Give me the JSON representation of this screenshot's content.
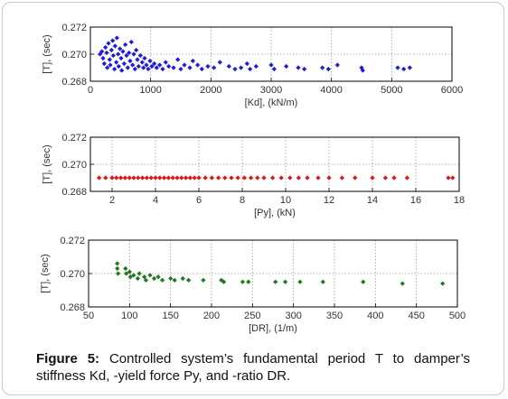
{
  "chart_data": [
    {
      "type": "scatter",
      "xlabel": "[Kd], (kN/m)",
      "ylabel": "[T], (sec)",
      "xlim": [
        0,
        6000
      ],
      "ylim": [
        0.268,
        0.272
      ],
      "xticks": [
        "0",
        "1000",
        "2000",
        "3000",
        "4000",
        "5000",
        "6000"
      ],
      "yticks": [
        "0.268",
        "0.270",
        "0.272"
      ],
      "grid": true,
      "color": "#1d1de0",
      "points": [
        [
          160,
          0.27
        ],
        [
          190,
          0.2702
        ],
        [
          210,
          0.2697
        ],
        [
          230,
          0.2693
        ],
        [
          250,
          0.2705
        ],
        [
          270,
          0.2701
        ],
        [
          280,
          0.269
        ],
        [
          300,
          0.2708
        ],
        [
          320,
          0.2696
        ],
        [
          330,
          0.2692
        ],
        [
          350,
          0.2703
        ],
        [
          370,
          0.271
        ],
        [
          380,
          0.2699
        ],
        [
          400,
          0.2689
        ],
        [
          410,
          0.2706
        ],
        [
          430,
          0.2694
        ],
        [
          440,
          0.2712
        ],
        [
          460,
          0.27
        ],
        [
          470,
          0.2691
        ],
        [
          490,
          0.2704
        ],
        [
          510,
          0.2697
        ],
        [
          520,
          0.2688
        ],
        [
          540,
          0.2702
        ],
        [
          560,
          0.2693
        ],
        [
          580,
          0.2707
        ],
        [
          600,
          0.2699
        ],
        [
          620,
          0.269
        ],
        [
          640,
          0.2701
        ],
        [
          660,
          0.2695
        ],
        [
          680,
          0.2709
        ],
        [
          700,
          0.2692
        ],
        [
          720,
          0.27
        ],
        [
          740,
          0.2689
        ],
        [
          760,
          0.2703
        ],
        [
          780,
          0.2696
        ],
        [
          800,
          0.2691
        ],
        [
          830,
          0.2699
        ],
        [
          860,
          0.2694
        ],
        [
          880,
          0.269
        ],
        [
          900,
          0.2697
        ],
        [
          930,
          0.2692
        ],
        [
          960,
          0.2689
        ],
        [
          990,
          0.2695
        ],
        [
          1020,
          0.2691
        ],
        [
          1060,
          0.2693
        ],
        [
          1100,
          0.269
        ],
        [
          1150,
          0.2692
        ],
        [
          1200,
          0.2689
        ],
        [
          1250,
          0.2694
        ],
        [
          1300,
          0.2691
        ],
        [
          1380,
          0.269
        ],
        [
          1450,
          0.2696
        ],
        [
          1500,
          0.2689
        ],
        [
          1560,
          0.2692
        ],
        [
          1650,
          0.269
        ],
        [
          1700,
          0.2695
        ],
        [
          1780,
          0.2692
        ],
        [
          1850,
          0.2689
        ],
        [
          1950,
          0.2691
        ],
        [
          2050,
          0.269
        ],
        [
          2150,
          0.2694
        ],
        [
          2300,
          0.2691
        ],
        [
          2400,
          0.2689
        ],
        [
          2500,
          0.269
        ],
        [
          2600,
          0.2693
        ],
        [
          2650,
          0.2689
        ],
        [
          2750,
          0.2691
        ],
        [
          3000,
          0.2692
        ],
        [
          3050,
          0.2689
        ],
        [
          3250,
          0.2691
        ],
        [
          3450,
          0.269
        ],
        [
          3550,
          0.2689
        ],
        [
          3850,
          0.269
        ],
        [
          3950,
          0.2689
        ],
        [
          4100,
          0.2692
        ],
        [
          4500,
          0.269
        ],
        [
          4520,
          0.2688
        ],
        [
          5100,
          0.269
        ],
        [
          5200,
          0.2689
        ],
        [
          5300,
          0.269
        ]
      ]
    },
    {
      "type": "scatter",
      "xlabel": "[Py], (kN)",
      "ylabel": "[T], (sec)",
      "xlim": [
        1,
        18
      ],
      "ylim": [
        0.268,
        0.272
      ],
      "xticks": [
        "2",
        "4",
        "6",
        "8",
        "10",
        "12",
        "14",
        "16",
        "18"
      ],
      "xtick_values": [
        2,
        4,
        6,
        8,
        10,
        12,
        14,
        16,
        18
      ],
      "yticks": [
        "0.268",
        "0.270",
        "0.272"
      ],
      "grid": true,
      "color": "#e01515",
      "points": [
        [
          1.4,
          0.269
        ],
        [
          1.7,
          0.269
        ],
        [
          2.0,
          0.269
        ],
        [
          2.2,
          0.269
        ],
        [
          2.4,
          0.269
        ],
        [
          2.6,
          0.269
        ],
        [
          2.8,
          0.269
        ],
        [
          3.0,
          0.269
        ],
        [
          3.2,
          0.269
        ],
        [
          3.4,
          0.269
        ],
        [
          3.6,
          0.269
        ],
        [
          3.8,
          0.269
        ],
        [
          4.0,
          0.269
        ],
        [
          4.2,
          0.269
        ],
        [
          4.4,
          0.269
        ],
        [
          4.6,
          0.269
        ],
        [
          4.8,
          0.269
        ],
        [
          5.0,
          0.269
        ],
        [
          5.2,
          0.269
        ],
        [
          5.4,
          0.269
        ],
        [
          5.6,
          0.269
        ],
        [
          5.8,
          0.269
        ],
        [
          6.0,
          0.269
        ],
        [
          6.3,
          0.269
        ],
        [
          6.6,
          0.269
        ],
        [
          6.9,
          0.269
        ],
        [
          7.2,
          0.269
        ],
        [
          7.5,
          0.269
        ],
        [
          7.8,
          0.269
        ],
        [
          8.1,
          0.269
        ],
        [
          8.4,
          0.269
        ],
        [
          8.7,
          0.269
        ],
        [
          9.0,
          0.269
        ],
        [
          9.4,
          0.269
        ],
        [
          9.8,
          0.269
        ],
        [
          10.2,
          0.269
        ],
        [
          10.6,
          0.269
        ],
        [
          11.0,
          0.269
        ],
        [
          11.5,
          0.269
        ],
        [
          12.0,
          0.269
        ],
        [
          12.6,
          0.269
        ],
        [
          13.2,
          0.269
        ],
        [
          14.0,
          0.269
        ],
        [
          14.6,
          0.269
        ],
        [
          15.0,
          0.269
        ],
        [
          15.6,
          0.269
        ],
        [
          17.5,
          0.269
        ],
        [
          17.7,
          0.269
        ]
      ]
    },
    {
      "type": "scatter",
      "xlabel": "[DR], (1/m)",
      "ylabel": "[T], (sec)",
      "xlim": [
        50,
        500
      ],
      "ylim": [
        0.268,
        0.272
      ],
      "xticks": [
        "50",
        "100",
        "150",
        "200",
        "250",
        "300",
        "350",
        "400",
        "450",
        "500"
      ],
      "xtick_values": [
        50,
        100,
        150,
        200,
        250,
        300,
        350,
        400,
        450,
        500
      ],
      "yticks": [
        "0.268",
        "0.270",
        "0.272"
      ],
      "grid": true,
      "color": "#1f7a1f",
      "points": [
        [
          85,
          0.2706
        ],
        [
          85,
          0.2703
        ],
        [
          86,
          0.27
        ],
        [
          95,
          0.2703
        ],
        [
          96,
          0.27
        ],
        [
          100,
          0.2701
        ],
        [
          101,
          0.2698
        ],
        [
          105,
          0.2699
        ],
        [
          110,
          0.2697
        ],
        [
          112,
          0.27
        ],
        [
          118,
          0.2698
        ],
        [
          120,
          0.2696
        ],
        [
          125,
          0.2699
        ],
        [
          130,
          0.2697
        ],
        [
          135,
          0.2698
        ],
        [
          140,
          0.2696
        ],
        [
          150,
          0.2697
        ],
        [
          155,
          0.2696
        ],
        [
          165,
          0.2697
        ],
        [
          172,
          0.2696
        ],
        [
          190,
          0.2696
        ],
        [
          212,
          0.2696
        ],
        [
          215,
          0.2695
        ],
        [
          238,
          0.2695
        ],
        [
          245,
          0.2695
        ],
        [
          278,
          0.2695
        ],
        [
          290,
          0.2695
        ],
        [
          308,
          0.2695
        ],
        [
          336,
          0.2695
        ],
        [
          385,
          0.2695
        ],
        [
          433,
          0.2694
        ],
        [
          482,
          0.2694
        ]
      ]
    }
  ],
  "caption": {
    "label": "Figure 5:",
    "text": " Controlled system’s fundamental period T to damper’s stiffness Kd, -yield force Py, and -ratio DR."
  }
}
